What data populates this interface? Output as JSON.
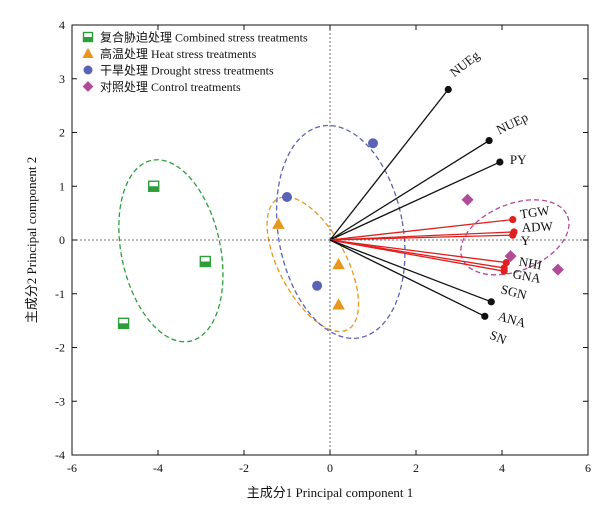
{
  "chart_data": {
    "type": "scatter",
    "xlabel": "主成分1 Principal component 1",
    "ylabel": "主成分2 Principal component 2",
    "xlim": [
      -6,
      6
    ],
    "ylim": [
      -4,
      4
    ],
    "xticks": [
      "-6",
      "-4",
      "-2",
      "0",
      "2",
      "4",
      "6"
    ],
    "yticks": [
      "-4",
      "-3",
      "-2",
      "-1",
      "0",
      "1",
      "2",
      "3",
      "4"
    ],
    "grid": false,
    "legend_position": "top-left",
    "series": [
      {
        "name": "复合胁迫处理 Combined stress treatments",
        "marker": "square-half",
        "color": "#2e9e3a",
        "points": [
          [
            -4.1,
            1.0
          ],
          [
            -2.9,
            -0.4
          ],
          [
            -4.8,
            -1.55
          ]
        ],
        "ellipse": {
          "cx": -3.7,
          "cy": -0.2,
          "rx": 1.15,
          "ry": 1.72,
          "angle": -12
        }
      },
      {
        "name": "高温处理 Heat stress treatments",
        "marker": "triangle",
        "color": "#e8961e",
        "points": [
          [
            -1.2,
            0.3
          ],
          [
            0.2,
            -0.45
          ],
          [
            0.2,
            -1.2
          ]
        ],
        "ellipse": {
          "cx": -0.4,
          "cy": -0.45,
          "rx": 0.78,
          "ry": 1.38,
          "angle": -28
        }
      },
      {
        "name": "干旱处理 Drought stress treatments",
        "marker": "circle",
        "color": "#5a63b5",
        "points": [
          [
            1.0,
            1.8
          ],
          [
            -1.0,
            0.8
          ],
          [
            -0.3,
            -0.85
          ]
        ],
        "ellipse": {
          "cx": 0.25,
          "cy": 0.15,
          "rx": 1.45,
          "ry": 2.0,
          "angle": -10
        }
      },
      {
        "name": "对照处理 Control treatments",
        "marker": "diamond",
        "color": "#b24a9a",
        "points": [
          [
            3.2,
            0.75
          ],
          [
            4.2,
            -0.3
          ],
          [
            5.3,
            -0.55
          ]
        ],
        "ellipse": {
          "cx": 4.3,
          "cy": 0.05,
          "rx": 1.32,
          "ry": 0.62,
          "angle": -22
        }
      }
    ],
    "vectors": [
      {
        "label": "NUEg",
        "x": 2.75,
        "y": 2.8,
        "color": "black"
      },
      {
        "label": "NUEp",
        "x": 3.7,
        "y": 1.85,
        "color": "black"
      },
      {
        "label": "PY",
        "x": 3.95,
        "y": 1.45,
        "color": "black"
      },
      {
        "label": "TGW",
        "x": 4.25,
        "y": 0.38,
        "color": "red"
      },
      {
        "label": "ADW",
        "x": 4.28,
        "y": 0.15,
        "color": "red"
      },
      {
        "label": "Y",
        "x": 4.25,
        "y": 0.09,
        "color": "red"
      },
      {
        "label": "NHI",
        "x": 4.1,
        "y": -0.42,
        "color": "red"
      },
      {
        "label": "GNA",
        "x": 4.05,
        "y": -0.52,
        "color": "red"
      },
      {
        "label": "SGN",
        "x": 4.05,
        "y": -0.58,
        "color": "red"
      },
      {
        "label": "ANA",
        "x": 3.75,
        "y": -1.15,
        "color": "black"
      },
      {
        "label": "SN",
        "x": 3.6,
        "y": -1.42,
        "color": "black"
      }
    ]
  }
}
